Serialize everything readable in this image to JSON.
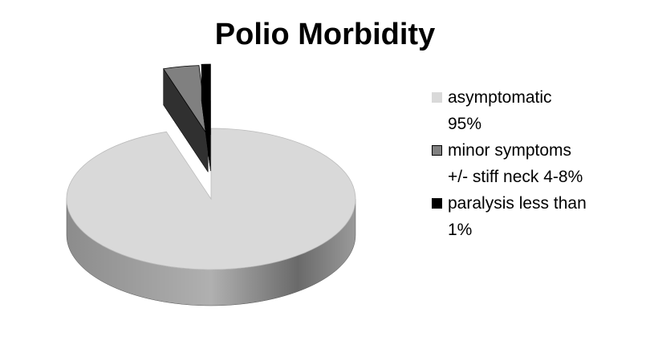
{
  "chart_data": {
    "type": "pie",
    "title": "Polio Morbidity",
    "categories": [
      "asymptomatic\n95%",
      "minor symptoms\n+/-  stiff neck 4-8%",
      "paralysis less than\n1%"
    ],
    "values": [
      95,
      4,
      1
    ],
    "colors": [
      "#d9d9d9",
      "#808080",
      "#000000"
    ],
    "legend": "right"
  }
}
